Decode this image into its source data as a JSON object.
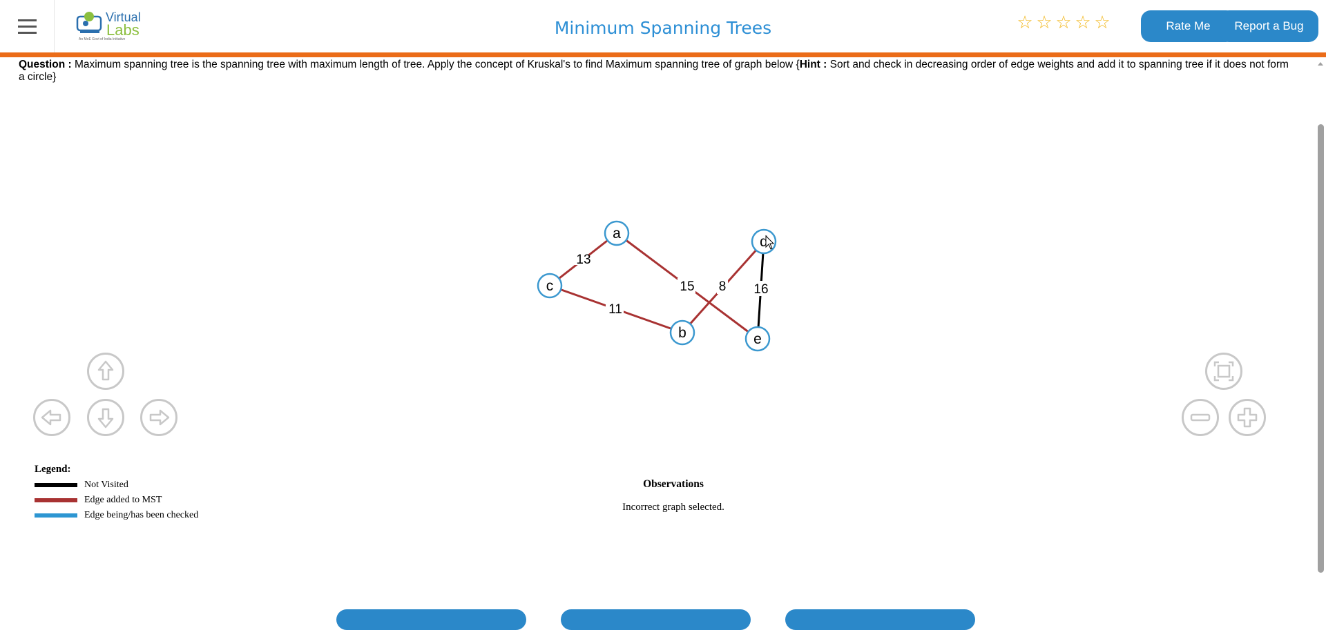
{
  "header": {
    "title": "Minimum Spanning Trees",
    "logo_word1": "Virtual",
    "logo_word2": "Labs",
    "logo_tagline": "An MoE Govt of India Initiative",
    "stars": [
      "☆",
      "☆",
      "☆",
      "☆",
      "☆"
    ],
    "rate_label": "Rate Me",
    "bug_label": "Report a Bug"
  },
  "question": {
    "label": "Question :",
    "text1": " Maximum spanning tree is the spanning tree with maximum length of tree. Apply the concept of Kruskal's to find Maximum spanning tree of graph below {",
    "hint_label": "Hint :",
    "text2": " Sort and check in decreasing order of edge weights and add it to spanning tree if it does not form a circle}"
  },
  "graph": {
    "nodes": [
      {
        "id": "a",
        "label": "a"
      },
      {
        "id": "c",
        "label": "c"
      },
      {
        "id": "b",
        "label": "b"
      },
      {
        "id": "d",
        "label": "d"
      },
      {
        "id": "e",
        "label": "e"
      }
    ],
    "edges": [
      {
        "from": "a",
        "to": "c",
        "weight": "13",
        "status": "mst"
      },
      {
        "from": "a",
        "to": "e",
        "weight": "15",
        "status": "mst"
      },
      {
        "from": "c",
        "to": "b",
        "weight": "11",
        "status": "mst"
      },
      {
        "from": "b",
        "to": "d",
        "weight": "8",
        "status": "mst"
      },
      {
        "from": "d",
        "to": "e",
        "weight": "16",
        "status": "not-visited"
      }
    ],
    "colors": {
      "mst": "#a83232",
      "not-visited": "#000000",
      "checked": "#2d96d2",
      "node_stroke": "#3b98cf"
    }
  },
  "controls": [
    "up-arrow-icon",
    "left-arrow-icon",
    "down-arrow-icon",
    "right-arrow-icon",
    "fit-screen-icon",
    "zoom-out-icon",
    "zoom-in-icon"
  ],
  "legend": {
    "title": "Legend:",
    "items": [
      {
        "label": "Not Visited",
        "color": "#000000"
      },
      {
        "label": "Edge added to MST",
        "color": "#a83232"
      },
      {
        "label": "Edge being/has been checked",
        "color": "#2d96d2"
      }
    ]
  },
  "observations": {
    "title": "Observations",
    "text": "Incorrect graph selected."
  }
}
